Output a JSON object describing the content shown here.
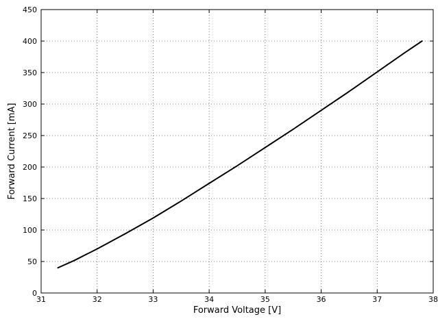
{
  "chart_data": {
    "type": "line",
    "title": "",
    "xlabel": "Forward Voltage [V]",
    "ylabel": "Forward Current [mA]",
    "xlim": [
      31,
      38
    ],
    "ylim": [
      0,
      450
    ],
    "xticks": [
      31,
      32,
      33,
      34,
      35,
      36,
      37,
      38
    ],
    "yticks": [
      0,
      50,
      100,
      150,
      200,
      250,
      300,
      350,
      400,
      450
    ],
    "grid": true,
    "line_color": "#000000",
    "series": [
      {
        "x": [
          31.3,
          31.6,
          32.0,
          32.5,
          33.0,
          33.5,
          34.0,
          34.5,
          35.0,
          35.5,
          36.0,
          36.5,
          37.0,
          37.5,
          37.8
        ],
        "values": [
          40,
          52,
          70,
          94,
          119,
          146,
          174,
          202,
          231,
          260,
          290,
          320,
          351,
          382,
          400
        ]
      }
    ]
  }
}
